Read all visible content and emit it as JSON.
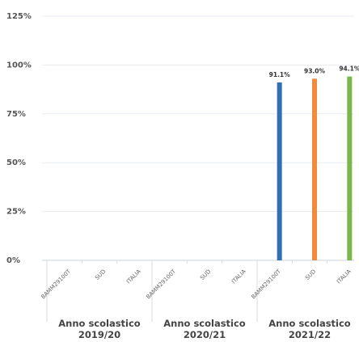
{
  "chart_data": {
    "type": "bar",
    "y_ticks": [
      "0%",
      "25%",
      "50%",
      "75%",
      "100%",
      "125%"
    ],
    "ylim": [
      0,
      125
    ],
    "grid": true,
    "groups": [
      {
        "label_lines": [
          "Anno scolastico",
          "2019/20"
        ],
        "categories": [
          "BAMM29100T",
          "SUD",
          "ITALIA"
        ],
        "values": [
          null,
          null,
          null
        ],
        "value_labels": [
          "",
          "",
          ""
        ]
      },
      {
        "label_lines": [
          "Anno scolastico",
          "2020/21"
        ],
        "categories": [
          "BAMM29100T",
          "SUD",
          "ITALIA"
        ],
        "values": [
          null,
          null,
          null
        ],
        "value_labels": [
          "",
          "",
          ""
        ]
      },
      {
        "label_lines": [
          "Anno scolastico",
          "2021/22"
        ],
        "categories": [
          "BAMM29100T",
          "SUD",
          "ITALIA"
        ],
        "values": [
          91.1,
          93.0,
          94.1
        ],
        "value_labels": [
          "91.1%",
          "93.0%",
          "94.1%"
        ]
      }
    ],
    "colors": [
      "#2f6fb5",
      "#f08a3c",
      "#7ab648"
    ]
  }
}
